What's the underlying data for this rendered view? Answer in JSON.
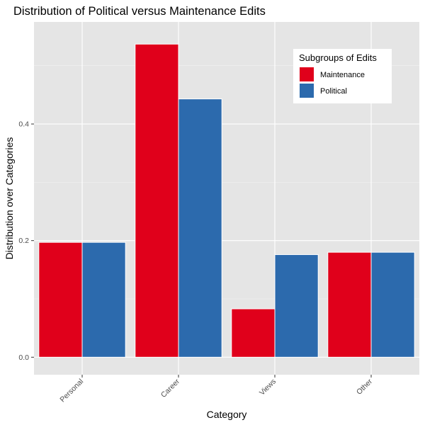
{
  "chart_data": {
    "type": "bar",
    "title": "Distribution of Political versus Maintenance Edits",
    "xlabel": "Category",
    "ylabel": "Distribution over Categories",
    "categories": [
      "Personal",
      "Career",
      "Views",
      "Other"
    ],
    "series": [
      {
        "name": "Maintenance",
        "color": "#e0001b",
        "values": [
          0.197,
          0.537,
          0.083,
          0.18
        ]
      },
      {
        "name": "Political",
        "color": "#2c6aad",
        "values": [
          0.197,
          0.443,
          0.176,
          0.18
        ]
      }
    ],
    "ylim": [
      -0.03,
      0.575
    ],
    "yticks": [
      0.0,
      0.2,
      0.4
    ],
    "ytick_labels": [
      "0.0",
      "0.2",
      "0.4"
    ],
    "legend": {
      "title": "Subgroups of Edits",
      "position": "top-right"
    },
    "grid": true,
    "panel_background": "#e5e5e5"
  }
}
